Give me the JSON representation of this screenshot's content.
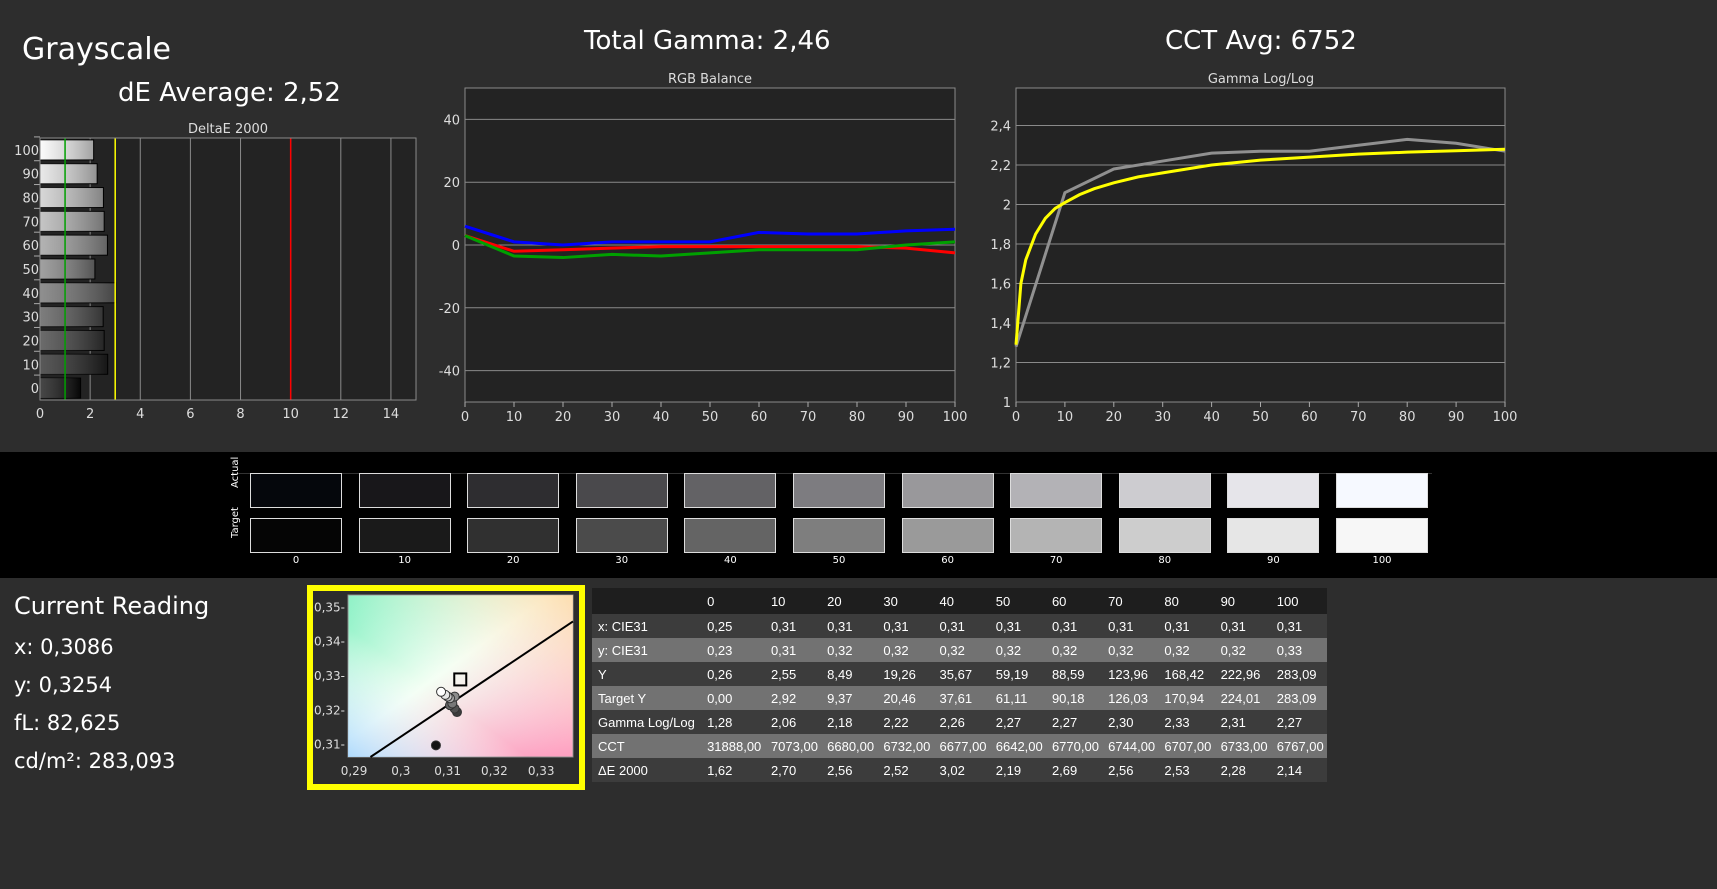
{
  "header": {
    "title": "Grayscale",
    "de_average": "dE Average: 2,52",
    "total_gamma": "Total Gamma: 2,46",
    "cct_avg": "CCT Avg: 6752"
  },
  "colors": {
    "red": "#ff0000",
    "green": "#00a000",
    "blue": "#0000ff",
    "yellow": "#ffff00",
    "gray": "#909090",
    "background": "#2d2d2d"
  },
  "chart_data": [
    {
      "type": "bar",
      "title": "DeltaE 2000",
      "categories": [
        "0",
        "10",
        "20",
        "30",
        "40",
        "50",
        "60",
        "70",
        "80",
        "90",
        "100"
      ],
      "values": [
        1.62,
        2.7,
        2.56,
        2.52,
        3.02,
        2.19,
        2.69,
        2.56,
        2.53,
        2.28,
        2.14
      ],
      "xlim": [
        0,
        15
      ],
      "xticks": [
        "0",
        "2",
        "4",
        "6",
        "8",
        "10",
        "12",
        "14"
      ],
      "reference_lines": [
        {
          "value": 1,
          "color": "#00a000"
        },
        {
          "value": 3,
          "color": "#ffff00"
        },
        {
          "value": 10,
          "color": "#ff0000"
        }
      ],
      "orientation": "horizontal",
      "grid": true
    },
    {
      "type": "line",
      "title": "RGB Balance",
      "x": [
        0,
        10,
        20,
        30,
        40,
        50,
        60,
        70,
        80,
        90,
        100
      ],
      "ylim": [
        -50,
        50
      ],
      "yticks": [
        "40",
        "20",
        "0",
        "-20",
        "-40"
      ],
      "xticks": [
        "0",
        "10",
        "20",
        "30",
        "40",
        "50",
        "60",
        "70",
        "80",
        "90",
        "100"
      ],
      "grid": true,
      "series": [
        {
          "color": "#0000ff",
          "values": [
            6,
            1,
            0,
            1,
            1,
            1,
            4,
            3.5,
            3.5,
            4.5,
            5
          ]
        },
        {
          "color": "#ff0000",
          "values": [
            3,
            -2,
            -1.5,
            -1,
            -0.5,
            -0.5,
            -0.5,
            -0.5,
            -0.5,
            -1,
            -2.5
          ]
        },
        {
          "color": "#00a000",
          "values": [
            3,
            -3.5,
            -4,
            -3,
            -3.5,
            -2.5,
            -1.5,
            -1.5,
            -1.5,
            0,
            1
          ]
        }
      ]
    },
    {
      "type": "line",
      "title": "Gamma Log/Log",
      "ylim": [
        1,
        2.59
      ],
      "xlim": [
        0,
        100
      ],
      "yticks": [
        "2,4",
        "2,2",
        "2",
        "1,8",
        "1,6",
        "1,4",
        "1,2",
        "1"
      ],
      "xticks": [
        "0",
        "10",
        "20",
        "30",
        "40",
        "50",
        "60",
        "70",
        "80",
        "90",
        "100"
      ],
      "grid": true,
      "series": [
        {
          "color": "#909090",
          "x": [
            0,
            10,
            20,
            30,
            40,
            50,
            60,
            70,
            80,
            90,
            100
          ],
          "values": [
            1.28,
            2.06,
            2.18,
            2.22,
            2.26,
            2.27,
            2.27,
            2.3,
            2.33,
            2.31,
            2.27
          ]
        },
        {
          "color": "#ffff00",
          "x": [
            0,
            1,
            2,
            4,
            6,
            8,
            10,
            13,
            16,
            20,
            25,
            30,
            40,
            50,
            60,
            70,
            80,
            90,
            100
          ],
          "values": [
            1.29,
            1.6,
            1.72,
            1.85,
            1.93,
            1.98,
            2.01,
            2.05,
            2.08,
            2.11,
            2.14,
            2.16,
            2.2,
            2.225,
            2.24,
            2.255,
            2.265,
            2.272,
            2.28
          ]
        }
      ]
    },
    {
      "type": "scatter",
      "title": "",
      "xticks": [
        "0,29",
        "0,3",
        "0,31",
        "0,32",
        "0,33"
      ],
      "yticks": [
        "0,35",
        "0,34",
        "0,33",
        "0,32",
        "0,31"
      ],
      "xlim": [
        0.2887,
        0.3368
      ],
      "ylim": [
        0.3064,
        0.3536
      ],
      "target": {
        "x": 0.3127,
        "y": 0.329
      },
      "points": [
        {
          "x": 0.3086,
          "y": 0.3254,
          "gray": 255
        },
        {
          "x": 0.3095,
          "y": 0.3245,
          "gray": 230
        },
        {
          "x": 0.31,
          "y": 0.324,
          "gray": 200
        },
        {
          "x": 0.3105,
          "y": 0.3235,
          "gray": 170
        },
        {
          "x": 0.3115,
          "y": 0.324,
          "gray": 140
        },
        {
          "x": 0.311,
          "y": 0.322,
          "gray": 120
        },
        {
          "x": 0.3105,
          "y": 0.3215,
          "gray": 100
        },
        {
          "x": 0.3115,
          "y": 0.3205,
          "gray": 80
        },
        {
          "x": 0.312,
          "y": 0.3195,
          "gray": 60
        },
        {
          "x": 0.3075,
          "y": 0.3098,
          "gray": 20
        }
      ],
      "locus": [
        [
          0.2935,
          0.3064
        ],
        [
          0.3368,
          0.3459
        ]
      ]
    }
  ],
  "swatches": {
    "actual_label": "Actual",
    "target_label": "Target",
    "labels": [
      "0",
      "10",
      "20",
      "30",
      "40",
      "50",
      "60",
      "70",
      "80",
      "90",
      "100"
    ],
    "actual": [
      "#05070c",
      "#18171a",
      "#2e2d30",
      "#4a494c",
      "#636265",
      "#7d7c80",
      "#99989b",
      "#b3b2b6",
      "#cdccd0",
      "#e6e5ea",
      "#f6f9ff"
    ],
    "target": [
      "#050505",
      "#1a1a1a",
      "#303030",
      "#4b4b4b",
      "#646464",
      "#7e7e7e",
      "#9a9a9a",
      "#b4b4b4",
      "#cdcdcd",
      "#e6e6e6",
      "#f7f7f7"
    ]
  },
  "reading": {
    "title": "Current Reading",
    "x": "x: 0,3086",
    "y": "y: 0,3254",
    "fl": "fL: 82,625",
    "cdm2": "cd/m²: 283,093"
  },
  "table": {
    "columns": [
      "",
      "0",
      "10",
      "20",
      "30",
      "40",
      "50",
      "60",
      "70",
      "80",
      "90",
      "100"
    ],
    "rows": [
      [
        "x: CIE31",
        "0,25",
        "0,31",
        "0,31",
        "0,31",
        "0,31",
        "0,31",
        "0,31",
        "0,31",
        "0,31",
        "0,31",
        "0,31"
      ],
      [
        "y: CIE31",
        "0,23",
        "0,31",
        "0,32",
        "0,32",
        "0,32",
        "0,32",
        "0,32",
        "0,32",
        "0,32",
        "0,32",
        "0,33"
      ],
      [
        "Y",
        "0,26",
        "2,55",
        "8,49",
        "19,26",
        "35,67",
        "59,19",
        "88,59",
        "123,96",
        "168,42",
        "222,96",
        "283,09"
      ],
      [
        "Target Y",
        "0,00",
        "2,92",
        "9,37",
        "20,46",
        "37,61",
        "61,11",
        "90,18",
        "126,03",
        "170,94",
        "224,01",
        "283,09"
      ],
      [
        "Gamma Log/Log",
        "1,28",
        "2,06",
        "2,18",
        "2,22",
        "2,26",
        "2,27",
        "2,27",
        "2,30",
        "2,33",
        "2,31",
        "2,27"
      ],
      [
        "CCT",
        "31888,00",
        "7073,00",
        "6680,00",
        "6732,00",
        "6677,00",
        "6642,00",
        "6770,00",
        "6744,00",
        "6707,00",
        "6733,00",
        "6767,00"
      ],
      [
        "ΔE 2000",
        "1,62",
        "2,70",
        "2,56",
        "2,52",
        "3,02",
        "2,19",
        "2,69",
        "2,56",
        "2,53",
        "2,28",
        "2,14"
      ]
    ]
  }
}
